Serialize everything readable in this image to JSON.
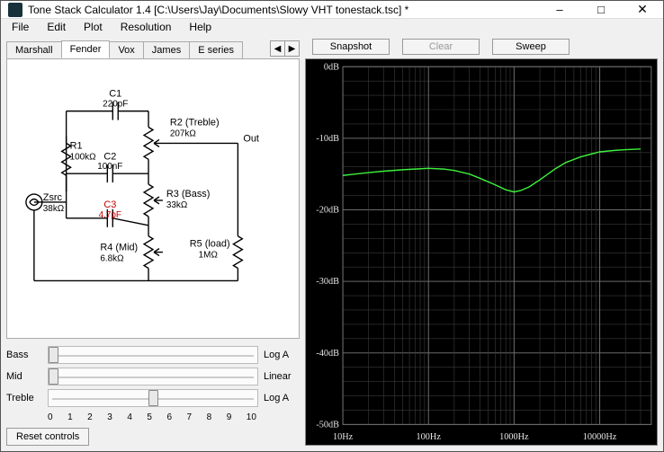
{
  "window": {
    "title": "Tone Stack Calculator 1.4 [C:\\Users\\Jay\\Documents\\Slowy VHT tonestack.tsc] *"
  },
  "menu": {
    "items": [
      "File",
      "Edit",
      "Plot",
      "Resolution",
      "Help"
    ]
  },
  "tabs": {
    "items": [
      "Marshall",
      "Fender",
      "Vox",
      "James",
      "E series"
    ],
    "active": 1
  },
  "circuit": {
    "labels": {
      "C1": "C1",
      "C1v": "220pF",
      "R2": "R2 (Treble)",
      "R2v": "207kΩ",
      "Out": "Out",
      "R1": "R1",
      "R1v": "100kΩ",
      "C2": "C2",
      "C2v": "100nF",
      "Zsrc": "Zsrc",
      "Zsrcv": "38kΩ",
      "C3": "C3",
      "C3v": "4.7pF",
      "R3": "R3 (Bass)",
      "R3v": "33kΩ",
      "R4": "R4 (Mid)",
      "R4v": "6.8kΩ",
      "R5": "R5 (load)",
      "R5v": "1MΩ"
    }
  },
  "sliders": {
    "rows": [
      {
        "label": "Bass",
        "type": "Log A",
        "pos": 0.02
      },
      {
        "label": "Mid",
        "type": "Linear",
        "pos": 0.02
      },
      {
        "label": "Treble",
        "type": "Log A",
        "pos": 0.5
      }
    ],
    "ruler": [
      "0",
      "1",
      "2",
      "3",
      "4",
      "5",
      "6",
      "7",
      "8",
      "9",
      "10"
    ]
  },
  "reset": {
    "label": "Reset controls"
  },
  "topButtons": {
    "snapshot": "Snapshot",
    "clear": "Clear",
    "sweep": "Sweep"
  },
  "chart": {
    "bg": "#000000",
    "grid_major": "#6a6a6a",
    "grid_minor": "#3a3a3a",
    "text_color": "#e8e8e8",
    "curve_color": "#3cf03c",
    "y": {
      "min": -50,
      "max": 0,
      "step": 10,
      "labels": [
        "0dB",
        "-10dB",
        "-20dB",
        "-30dB",
        "-40dB",
        "-50dB"
      ]
    },
    "x": {
      "decades": [
        10,
        100,
        1000,
        10000
      ],
      "labels": [
        "10Hz",
        "100Hz",
        "1000Hz",
        "10000Hz"
      ]
    },
    "curve": [
      [
        10,
        -15.2
      ],
      [
        14,
        -15.0
      ],
      [
        20,
        -14.8
      ],
      [
        30,
        -14.6
      ],
      [
        50,
        -14.4
      ],
      [
        70,
        -14.3
      ],
      [
        100,
        -14.2
      ],
      [
        150,
        -14.3
      ],
      [
        200,
        -14.5
      ],
      [
        300,
        -15.0
      ],
      [
        400,
        -15.6
      ],
      [
        600,
        -16.5
      ],
      [
        800,
        -17.2
      ],
      [
        1000,
        -17.5
      ],
      [
        1200,
        -17.3
      ],
      [
        1500,
        -16.8
      ],
      [
        2000,
        -15.8
      ],
      [
        3000,
        -14.3
      ],
      [
        4000,
        -13.4
      ],
      [
        6000,
        -12.6
      ],
      [
        8000,
        -12.2
      ],
      [
        10000,
        -11.9
      ],
      [
        15000,
        -11.7
      ],
      [
        20000,
        -11.6
      ],
      [
        30000,
        -11.5
      ]
    ]
  }
}
